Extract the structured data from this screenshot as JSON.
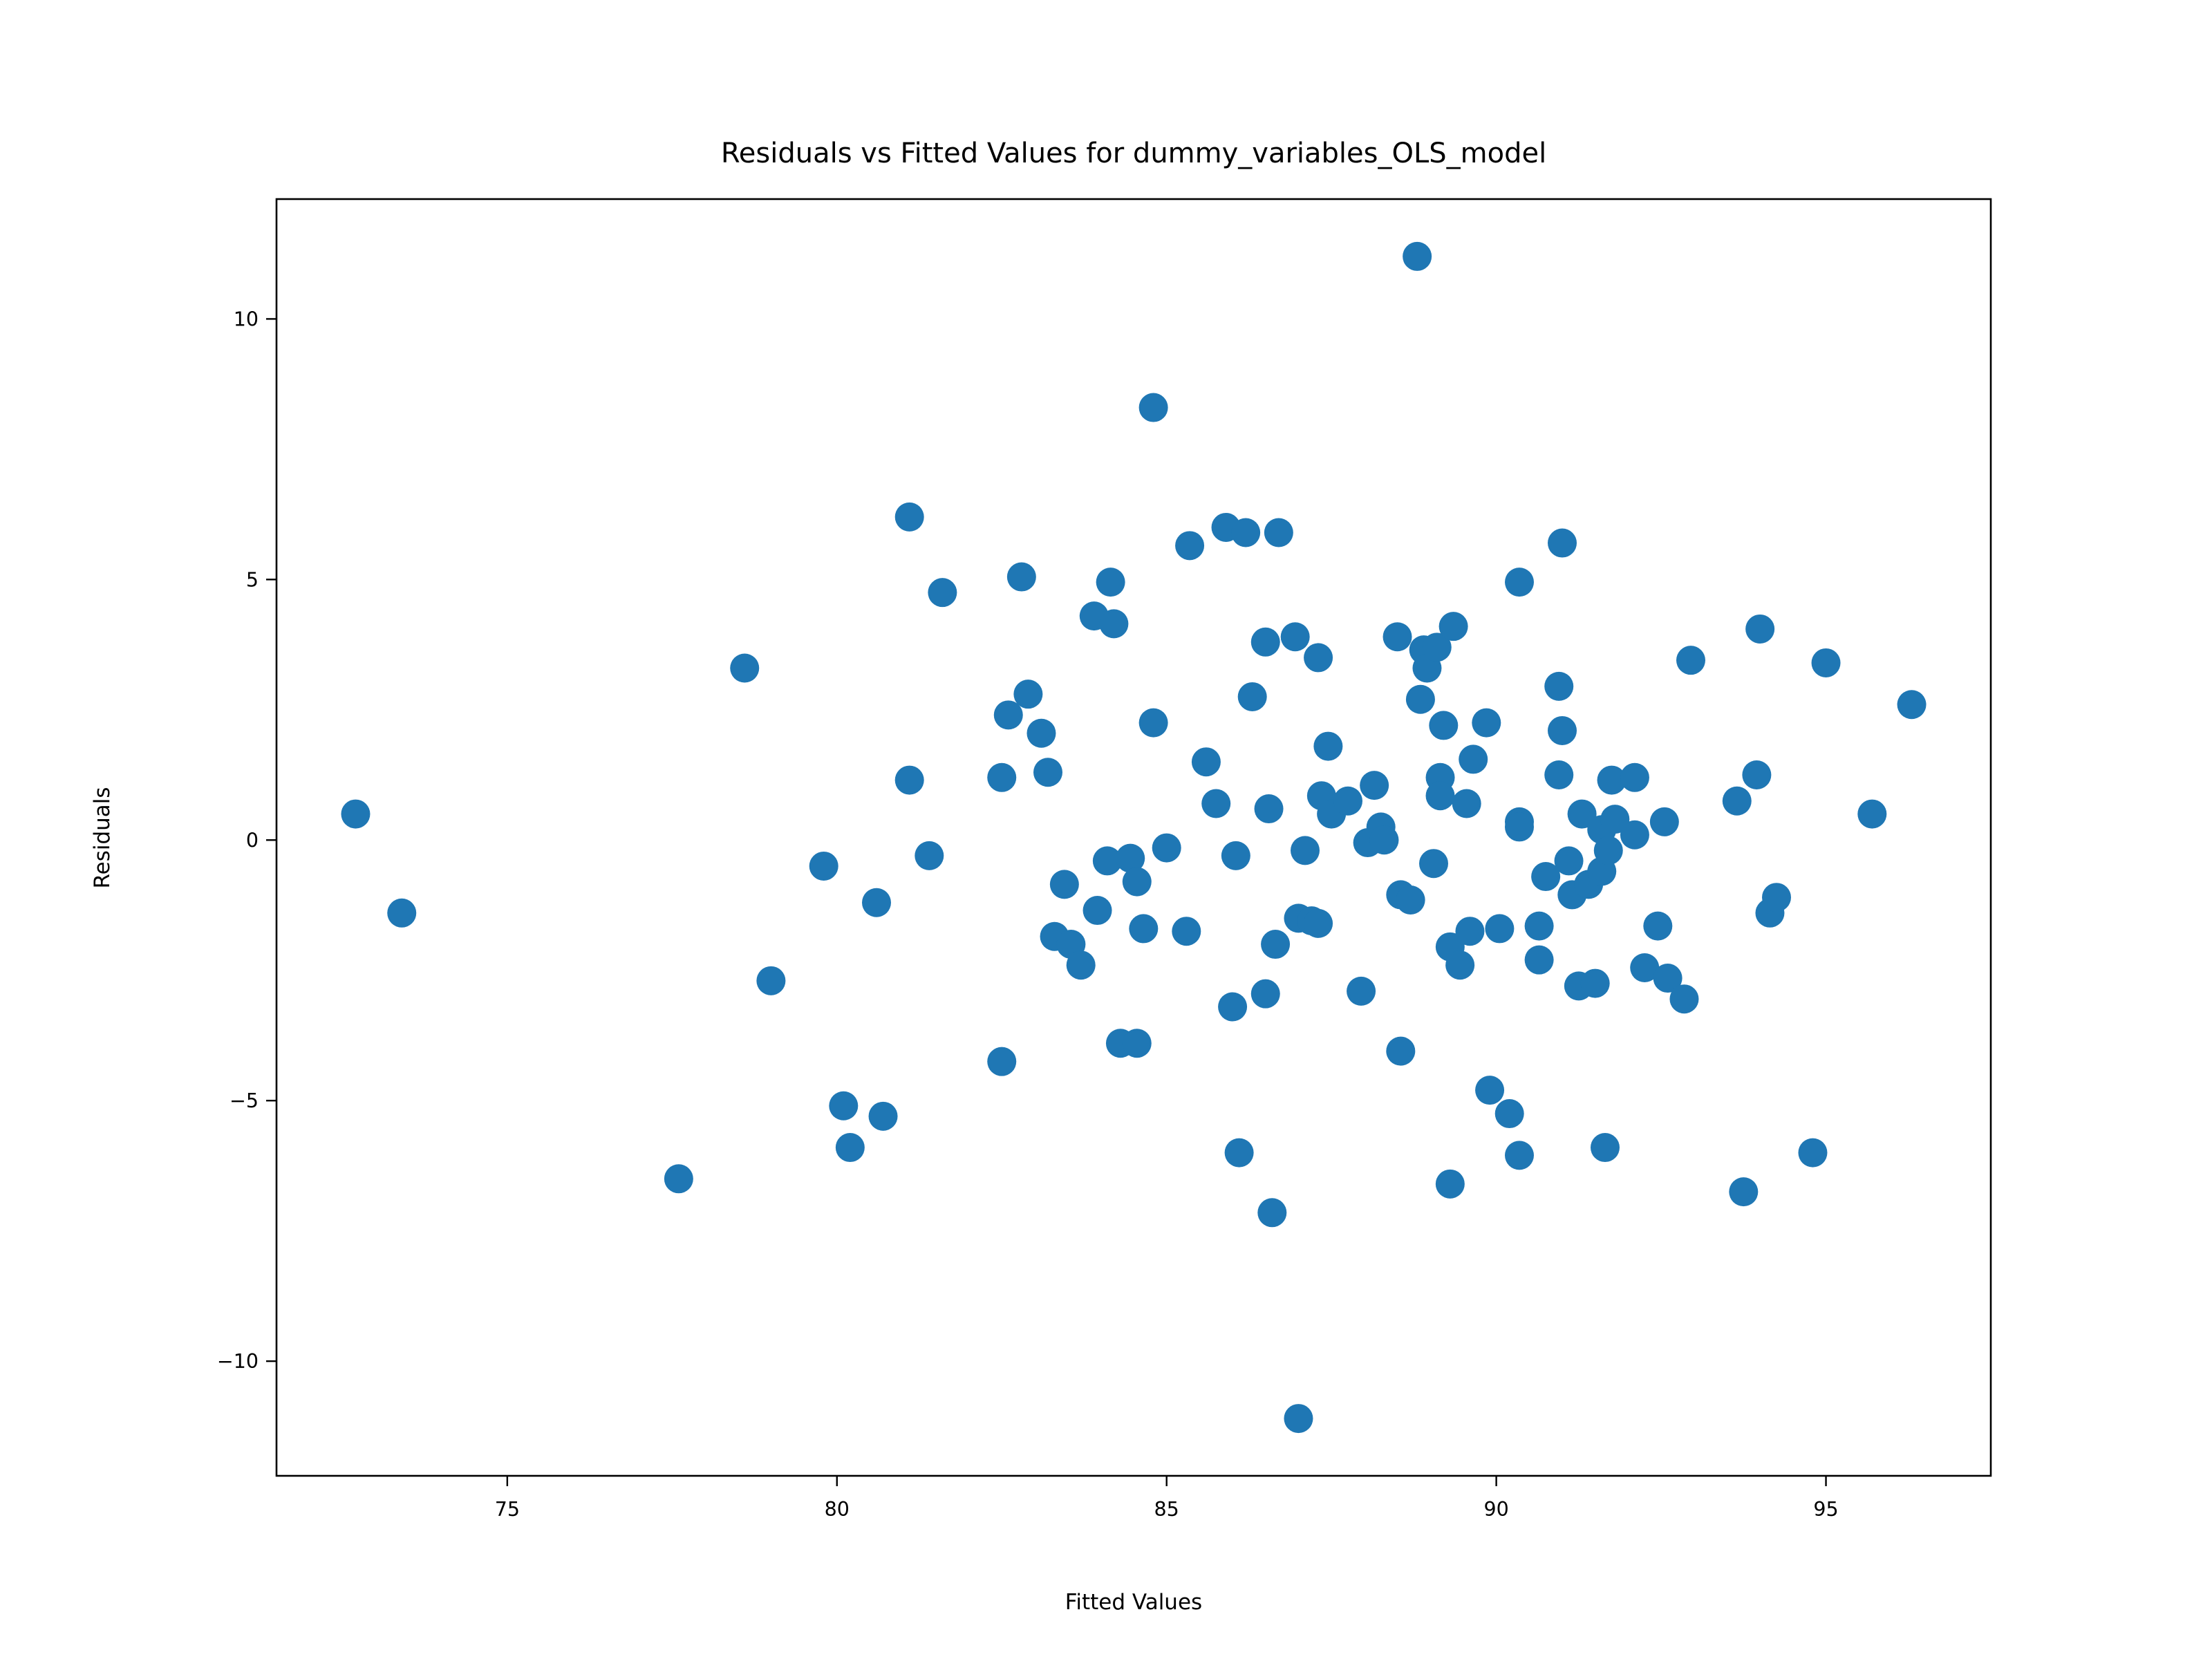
{
  "chart_data": {
    "type": "scatter",
    "title": "Residuals vs Fitted Values for dummy_variables_OLS_model",
    "xlabel": "Fitted Values",
    "ylabel": "Residuals",
    "xlim": [
      71.5,
      97.5
    ],
    "ylim": [
      -12.2,
      12.3
    ],
    "xticks": [
      75,
      80,
      85,
      90,
      95
    ],
    "xtick_labels": [
      "75",
      "80",
      "85",
      "90",
      "95"
    ],
    "yticks": [
      10,
      5,
      0,
      -5,
      -10
    ],
    "ytick_labels": [
      "10",
      "5",
      "0",
      "−5",
      "−10"
    ],
    "grid": false,
    "legend": false,
    "marker_color": "#1f77b4",
    "series": [
      {
        "points": [
          [
            72.7,
            0.5
          ],
          [
            73.4,
            -1.4
          ],
          [
            77.6,
            -6.5
          ],
          [
            78.6,
            3.3
          ],
          [
            79.0,
            -2.7
          ],
          [
            79.8,
            -0.5
          ],
          [
            80.1,
            -5.1
          ],
          [
            80.2,
            -5.9
          ],
          [
            80.6,
            -1.2
          ],
          [
            80.7,
            -5.3
          ],
          [
            81.1,
            6.2
          ],
          [
            81.1,
            1.15
          ],
          [
            81.4,
            -0.3
          ],
          [
            81.6,
            4.75
          ],
          [
            82.5,
            -4.25
          ],
          [
            82.5,
            1.2
          ],
          [
            82.6,
            2.4
          ],
          [
            82.8,
            5.05
          ],
          [
            82.9,
            2.8
          ],
          [
            83.1,
            2.05
          ],
          [
            83.2,
            1.3
          ],
          [
            83.3,
            -1.85
          ],
          [
            83.45,
            -0.85
          ],
          [
            83.55,
            -2.0
          ],
          [
            83.7,
            -2.4
          ],
          [
            83.9,
            4.3
          ],
          [
            83.95,
            -1.35
          ],
          [
            84.1,
            -0.4
          ],
          [
            84.15,
            4.95
          ],
          [
            84.2,
            4.15
          ],
          [
            84.3,
            -3.9
          ],
          [
            84.45,
            -0.35
          ],
          [
            84.55,
            -3.9
          ],
          [
            84.55,
            -0.8
          ],
          [
            84.65,
            -1.7
          ],
          [
            84.8,
            8.3
          ],
          [
            84.8,
            2.25
          ],
          [
            85.0,
            -0.15
          ],
          [
            85.3,
            -1.75
          ],
          [
            85.35,
            5.65
          ],
          [
            85.6,
            1.5
          ],
          [
            85.75,
            0.7
          ],
          [
            85.9,
            6.0
          ],
          [
            86.0,
            -3.2
          ],
          [
            86.05,
            -0.3
          ],
          [
            86.1,
            -6.0
          ],
          [
            86.2,
            5.9
          ],
          [
            86.3,
            2.75
          ],
          [
            86.5,
            3.8
          ],
          [
            86.55,
            0.6
          ],
          [
            86.5,
            -2.95
          ],
          [
            86.6,
            -7.15
          ],
          [
            86.65,
            -2.0
          ],
          [
            86.7,
            5.9
          ],
          [
            86.95,
            3.9
          ],
          [
            87.0,
            -1.5
          ],
          [
            87.0,
            -11.1
          ],
          [
            87.1,
            -0.2
          ],
          [
            87.2,
            -1.55
          ],
          [
            87.3,
            3.5
          ],
          [
            87.3,
            -1.6
          ],
          [
            87.35,
            0.85
          ],
          [
            87.45,
            1.8
          ],
          [
            87.5,
            0.5
          ],
          [
            87.75,
            0.75
          ],
          [
            87.95,
            -2.9
          ],
          [
            88.05,
            -0.05
          ],
          [
            88.15,
            1.05
          ],
          [
            88.25,
            0.25
          ],
          [
            88.3,
            0.0
          ],
          [
            88.5,
            3.9
          ],
          [
            88.55,
            -1.05
          ],
          [
            88.55,
            -4.05
          ],
          [
            88.7,
            -1.15
          ],
          [
            88.8,
            11.2
          ],
          [
            88.85,
            2.7
          ],
          [
            88.9,
            3.65
          ],
          [
            88.95,
            3.3
          ],
          [
            89.1,
            3.7
          ],
          [
            89.05,
            -0.45
          ],
          [
            89.15,
            1.2
          ],
          [
            89.15,
            0.85
          ],
          [
            89.2,
            2.2
          ],
          [
            89.3,
            -2.05
          ],
          [
            89.35,
            4.1
          ],
          [
            89.3,
            -6.6
          ],
          [
            89.45,
            -2.4
          ],
          [
            89.55,
            0.7
          ],
          [
            89.6,
            -1.75
          ],
          [
            89.65,
            1.55
          ],
          [
            89.85,
            2.25
          ],
          [
            89.9,
            -4.8
          ],
          [
            90.05,
            -1.7
          ],
          [
            90.2,
            -5.25
          ],
          [
            90.35,
            4.95
          ],
          [
            90.35,
            0.35
          ],
          [
            90.35,
            0.25
          ],
          [
            90.35,
            -6.05
          ],
          [
            90.65,
            -1.65
          ],
          [
            90.65,
            -2.3
          ],
          [
            90.75,
            -0.7
          ],
          [
            90.95,
            2.95
          ],
          [
            90.95,
            1.25
          ],
          [
            91.0,
            2.1
          ],
          [
            91.0,
            5.7
          ],
          [
            91.1,
            -0.4
          ],
          [
            91.15,
            -1.05
          ],
          [
            91.25,
            -2.8
          ],
          [
            91.3,
            0.5
          ],
          [
            91.4,
            -0.85
          ],
          [
            91.5,
            -2.75
          ],
          [
            91.6,
            0.2
          ],
          [
            91.6,
            -0.6
          ],
          [
            91.65,
            -5.9
          ],
          [
            91.7,
            -0.2
          ],
          [
            91.75,
            1.15
          ],
          [
            91.8,
            0.4
          ],
          [
            92.1,
            1.2
          ],
          [
            92.1,
            0.1
          ],
          [
            92.25,
            -2.45
          ],
          [
            92.45,
            -1.65
          ],
          [
            92.55,
            0.35
          ],
          [
            92.6,
            -2.65
          ],
          [
            92.85,
            -3.05
          ],
          [
            92.95,
            3.45
          ],
          [
            93.65,
            0.75
          ],
          [
            93.75,
            -6.75
          ],
          [
            93.95,
            1.25
          ],
          [
            94.0,
            4.05
          ],
          [
            94.15,
            -1.4
          ],
          [
            94.25,
            -1.1
          ],
          [
            94.8,
            -6.0
          ],
          [
            95.0,
            3.4
          ],
          [
            95.7,
            0.5
          ],
          [
            96.3,
            2.6
          ]
        ]
      }
    ]
  }
}
